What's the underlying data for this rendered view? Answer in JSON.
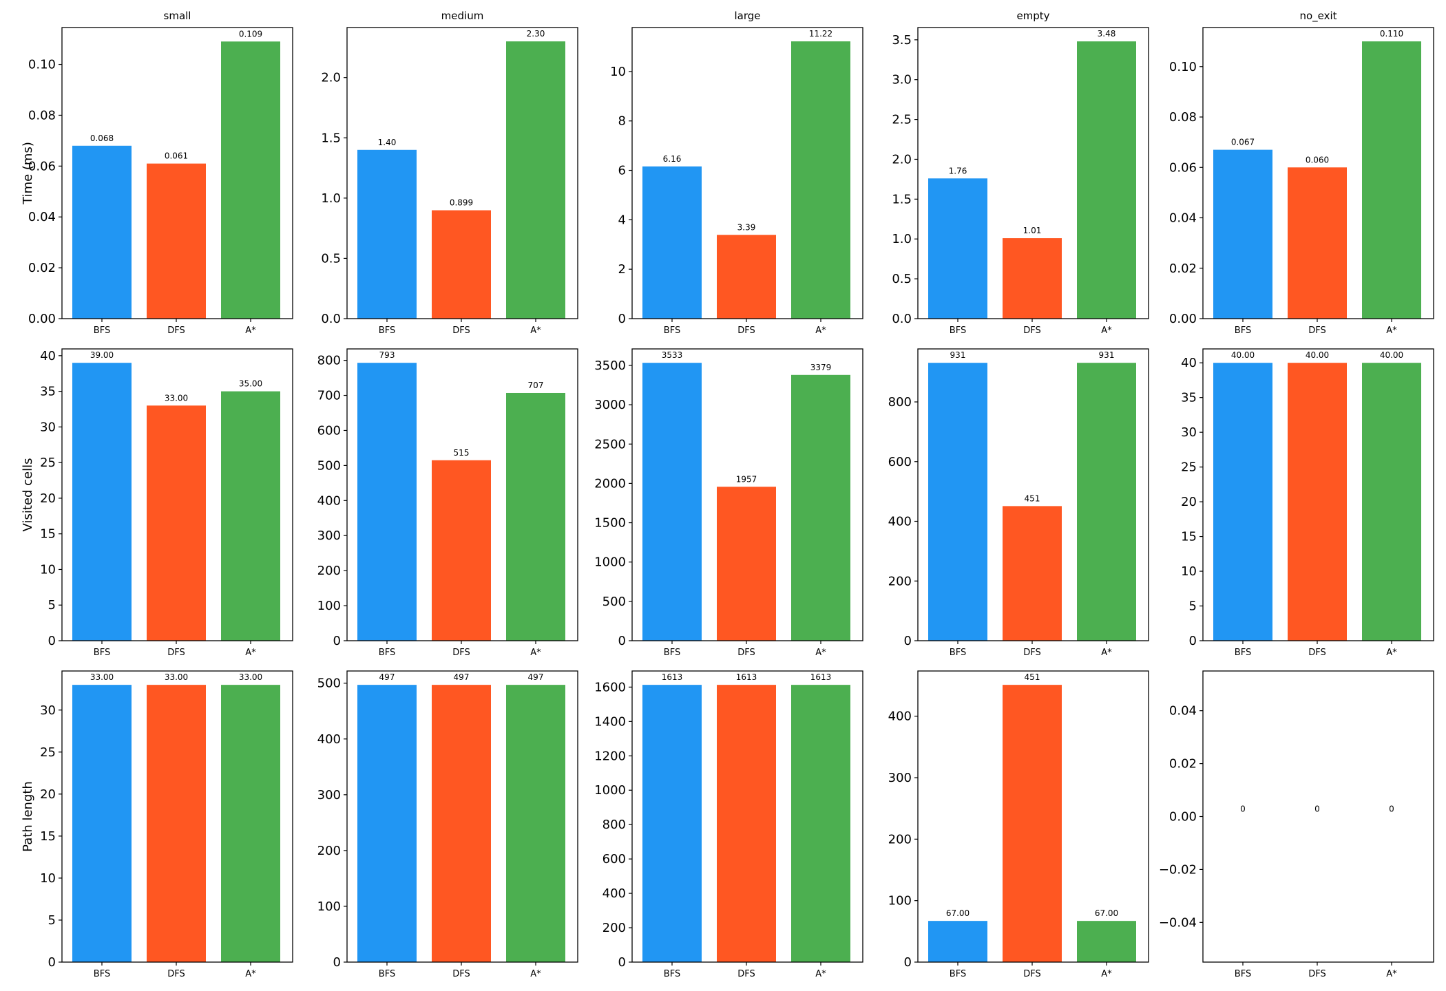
{
  "colors": {
    "BFS": "#2196F3",
    "DFS": "#FF5722",
    "A*": "#4CAF50"
  },
  "chart_data": {
    "type": "bar",
    "layout": "grid 3 rows x 5 columns",
    "columns": [
      "small",
      "medium",
      "large",
      "empty",
      "no_exit"
    ],
    "categories": [
      "BFS",
      "DFS",
      "A*"
    ],
    "rows": [
      {
        "ylabel": "Time (ms)",
        "charts": [
          {
            "title": "small",
            "values": [
              0.068,
              0.061,
              0.109
            ],
            "labels": [
              "0.068",
              "0.061",
              "0.109"
            ],
            "ylim": [
              0,
              0.1145
            ],
            "yticks": [
              0,
              0.02,
              0.04,
              0.06,
              0.08,
              0.1
            ],
            "yticklabels": [
              "0.00",
              "0.02",
              "0.04",
              "0.06",
              "0.08",
              "0.10"
            ]
          },
          {
            "title": "medium",
            "values": [
              1.4,
              0.899,
              2.3
            ],
            "labels": [
              "1.40",
              "0.899",
              "2.30"
            ],
            "ylim": [
              0,
              2.415
            ],
            "yticks": [
              0,
              0.5,
              1,
              1.5,
              2
            ],
            "yticklabels": [
              "0.0",
              "0.5",
              "1.0",
              "1.5",
              "2.0"
            ]
          },
          {
            "title": "large",
            "values": [
              6.16,
              3.39,
              11.22
            ],
            "labels": [
              "6.16",
              "3.39",
              "11.22"
            ],
            "ylim": [
              0,
              11.78
            ],
            "yticks": [
              0,
              2,
              4,
              6,
              8,
              10
            ],
            "yticklabels": [
              "0",
              "2",
              "4",
              "6",
              "8",
              "10"
            ]
          },
          {
            "title": "empty",
            "values": [
              1.76,
              1.01,
              3.48
            ],
            "labels": [
              "1.76",
              "1.01",
              "3.48"
            ],
            "ylim": [
              0,
              3.654
            ],
            "yticks": [
              0,
              0.5,
              1,
              1.5,
              2,
              2.5,
              3,
              3.5
            ],
            "yticklabels": [
              "0.0",
              "0.5",
              "1.0",
              "1.5",
              "2.0",
              "2.5",
              "3.0",
              "3.5"
            ]
          },
          {
            "title": "no_exit",
            "values": [
              0.067,
              0.06,
              0.11
            ],
            "labels": [
              "0.067",
              "0.060",
              "0.110"
            ],
            "ylim": [
              0,
              0.1155
            ],
            "yticks": [
              0,
              0.02,
              0.04,
              0.06,
              0.08,
              0.1
            ],
            "yticklabels": [
              "0.00",
              "0.02",
              "0.04",
              "0.06",
              "0.08",
              "0.10"
            ]
          }
        ]
      },
      {
        "ylabel": "Visited cells",
        "charts": [
          {
            "title": "",
            "values": [
              39,
              33,
              35
            ],
            "labels": [
              "39.00",
              "33.00",
              "35.00"
            ],
            "ylim": [
              0,
              40.95
            ],
            "yticks": [
              0,
              5,
              10,
              15,
              20,
              25,
              30,
              35,
              40
            ],
            "yticklabels": [
              "0",
              "5",
              "10",
              "15",
              "20",
              "25",
              "30",
              "35",
              "40"
            ]
          },
          {
            "title": "",
            "values": [
              793,
              515,
              707
            ],
            "labels": [
              "793",
              "515",
              "707"
            ],
            "ylim": [
              0,
              832.65
            ],
            "yticks": [
              0,
              100,
              200,
              300,
              400,
              500,
              600,
              700,
              800
            ],
            "yticklabels": [
              "0",
              "100",
              "200",
              "300",
              "400",
              "500",
              "600",
              "700",
              "800"
            ]
          },
          {
            "title": "",
            "values": [
              3533,
              1957,
              3379
            ],
            "labels": [
              "3533",
              "1957",
              "3379"
            ],
            "ylim": [
              0,
              3709.65
            ],
            "yticks": [
              0,
              500,
              1000,
              1500,
              2000,
              2500,
              3000,
              3500
            ],
            "yticklabels": [
              "0",
              "500",
              "1000",
              "1500",
              "2000",
              "2500",
              "3000",
              "3500"
            ]
          },
          {
            "title": "",
            "values": [
              931,
              451,
              931
            ],
            "labels": [
              "931",
              "451",
              "931"
            ],
            "ylim": [
              0,
              977.55
            ],
            "yticks": [
              0,
              200,
              400,
              600,
              800
            ],
            "yticklabels": [
              "0",
              "200",
              "400",
              "600",
              "800"
            ]
          },
          {
            "title": "",
            "values": [
              40,
              40,
              40
            ],
            "labels": [
              "40.00",
              "40.00",
              "40.00"
            ],
            "ylim": [
              0,
              42
            ],
            "yticks": [
              0,
              5,
              10,
              15,
              20,
              25,
              30,
              35,
              40
            ],
            "yticklabels": [
              "0",
              "5",
              "10",
              "15",
              "20",
              "25",
              "30",
              "35",
              "40"
            ]
          }
        ]
      },
      {
        "ylabel": "Path length",
        "charts": [
          {
            "title": "",
            "values": [
              33,
              33,
              33
            ],
            "labels": [
              "33.00",
              "33.00",
              "33.00"
            ],
            "ylim": [
              0,
              34.65
            ],
            "yticks": [
              0,
              5,
              10,
              15,
              20,
              25,
              30
            ],
            "yticklabels": [
              "0",
              "5",
              "10",
              "15",
              "20",
              "25",
              "30"
            ]
          },
          {
            "title": "",
            "values": [
              497,
              497,
              497
            ],
            "labels": [
              "497",
              "497",
              "497"
            ],
            "ylim": [
              0,
              521.85
            ],
            "yticks": [
              0,
              100,
              200,
              300,
              400,
              500
            ],
            "yticklabels": [
              "0",
              "100",
              "200",
              "300",
              "400",
              "500"
            ]
          },
          {
            "title": "",
            "values": [
              1613,
              1613,
              1613
            ],
            "labels": [
              "1613",
              "1613",
              "1613"
            ],
            "ylim": [
              0,
              1693.65
            ],
            "yticks": [
              0,
              200,
              400,
              600,
              800,
              1000,
              1200,
              1400,
              1600
            ],
            "yticklabels": [
              "0",
              "200",
              "400",
              "600",
              "800",
              "1000",
              "1200",
              "1400",
              "1600"
            ]
          },
          {
            "title": "",
            "values": [
              67,
              451,
              67
            ],
            "labels": [
              "67.00",
              "451",
              "67.00"
            ],
            "ylim": [
              0,
              473.55
            ],
            "yticks": [
              0,
              100,
              200,
              300,
              400
            ],
            "yticklabels": [
              "0",
              "100",
              "200",
              "300",
              "400"
            ]
          },
          {
            "title": "",
            "values": [
              0,
              0,
              0
            ],
            "labels": [
              "0",
              "0",
              "0"
            ],
            "ylim": [
              -0.055,
              0.055
            ],
            "yticks": [
              -0.04,
              -0.02,
              0,
              0.02,
              0.04
            ],
            "yticklabels": [
              "−0.04",
              "−0.02",
              "0.00",
              "0.02",
              "0.04"
            ]
          }
        ]
      }
    ]
  }
}
